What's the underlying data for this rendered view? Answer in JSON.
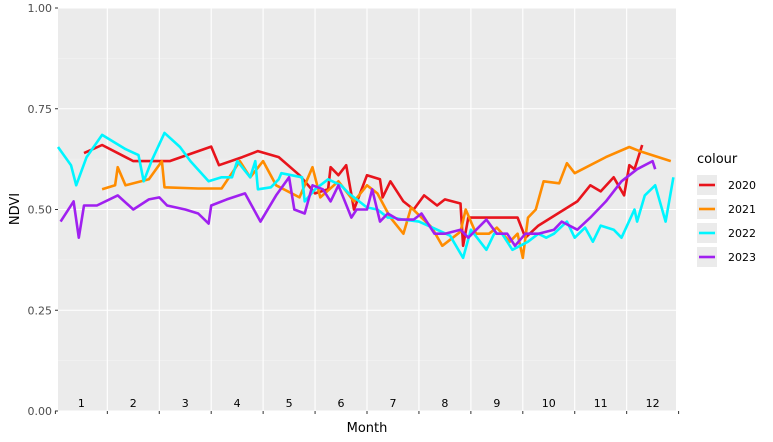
{
  "chart_data": {
    "type": "line",
    "xlabel": "Month",
    "ylabel": "NDVI",
    "ylim": [
      0,
      1
    ],
    "xlim": [
      0.55,
      12.45
    ],
    "yticks": [
      "0.00",
      "0.25",
      "0.50",
      "0.75",
      "1.00"
    ],
    "ytick_values": [
      0,
      0.25,
      0.5,
      0.75,
      1
    ],
    "month_labels": [
      "1",
      "2",
      "3",
      "4",
      "5",
      "6",
      "7",
      "8",
      "9",
      "10",
      "11",
      "12"
    ],
    "grid": true,
    "legend_title": "colour",
    "legend_position": "right",
    "series": [
      {
        "name": "2020",
        "color": "#e8141c",
        "points": [
          [
            1.05,
            0.64
          ],
          [
            1.4,
            0.66
          ],
          [
            2.0,
            0.62
          ],
          [
            2.3,
            0.62
          ],
          [
            2.7,
            0.62
          ],
          [
            3.5,
            0.656
          ],
          [
            3.65,
            0.61
          ],
          [
            4.1,
            0.63
          ],
          [
            4.4,
            0.645
          ],
          [
            4.8,
            0.63
          ],
          [
            5.2,
            0.585
          ],
          [
            5.5,
            0.54
          ],
          [
            5.75,
            0.55
          ],
          [
            5.8,
            0.605
          ],
          [
            5.95,
            0.585
          ],
          [
            6.1,
            0.61
          ],
          [
            6.25,
            0.5
          ],
          [
            6.5,
            0.585
          ],
          [
            6.75,
            0.575
          ],
          [
            6.8,
            0.53
          ],
          [
            6.95,
            0.57
          ],
          [
            7.2,
            0.52
          ],
          [
            7.4,
            0.5
          ],
          [
            7.6,
            0.535
          ],
          [
            7.85,
            0.51
          ],
          [
            8.0,
            0.525
          ],
          [
            8.3,
            0.515
          ],
          [
            8.35,
            0.41
          ],
          [
            8.45,
            0.48
          ],
          [
            8.75,
            0.48
          ],
          [
            9.1,
            0.48
          ],
          [
            9.4,
            0.48
          ],
          [
            9.55,
            0.43
          ],
          [
            9.8,
            0.46
          ],
          [
            10.55,
            0.52
          ],
          [
            10.8,
            0.56
          ],
          [
            11.0,
            0.545
          ],
          [
            11.25,
            0.58
          ],
          [
            11.45,
            0.535
          ],
          [
            11.55,
            0.61
          ],
          [
            11.65,
            0.6
          ],
          [
            11.8,
            0.66
          ]
        ]
      },
      {
        "name": "2021",
        "color": "#ff8c00",
        "points": [
          [
            1.4,
            0.55
          ],
          [
            1.65,
            0.56
          ],
          [
            1.7,
            0.605
          ],
          [
            1.85,
            0.56
          ],
          [
            2.3,
            0.575
          ],
          [
            2.55,
            0.62
          ],
          [
            2.6,
            0.555
          ],
          [
            3.25,
            0.552
          ],
          [
            3.7,
            0.552
          ],
          [
            3.95,
            0.6
          ],
          [
            4.05,
            0.62
          ],
          [
            4.25,
            0.58
          ],
          [
            4.5,
            0.62
          ],
          [
            4.75,
            0.56
          ],
          [
            5.2,
            0.53
          ],
          [
            5.45,
            0.605
          ],
          [
            5.6,
            0.53
          ],
          [
            5.95,
            0.57
          ],
          [
            6.25,
            0.52
          ],
          [
            6.5,
            0.56
          ],
          [
            6.7,
            0.54
          ],
          [
            6.95,
            0.48
          ],
          [
            7.2,
            0.44
          ],
          [
            7.35,
            0.505
          ],
          [
            7.55,
            0.48
          ],
          [
            7.75,
            0.455
          ],
          [
            7.95,
            0.41
          ],
          [
            8.3,
            0.445
          ],
          [
            8.4,
            0.5
          ],
          [
            8.6,
            0.44
          ],
          [
            8.85,
            0.44
          ],
          [
            9.0,
            0.455
          ],
          [
            9.25,
            0.42
          ],
          [
            9.4,
            0.44
          ],
          [
            9.5,
            0.38
          ],
          [
            9.6,
            0.48
          ],
          [
            9.75,
            0.5
          ],
          [
            9.9,
            0.57
          ],
          [
            10.2,
            0.565
          ],
          [
            10.35,
            0.615
          ],
          [
            10.5,
            0.59
          ],
          [
            11.1,
            0.63
          ],
          [
            11.55,
            0.655
          ],
          [
            11.75,
            0.645
          ],
          [
            12.35,
            0.62
          ]
        ]
      },
      {
        "name": "2022",
        "color": "#00f5ff",
        "points": [
          [
            0.55,
            0.655
          ],
          [
            0.8,
            0.61
          ],
          [
            0.9,
            0.56
          ],
          [
            1.1,
            0.63
          ],
          [
            1.4,
            0.685
          ],
          [
            1.85,
            0.65
          ],
          [
            2.1,
            0.635
          ],
          [
            2.2,
            0.57
          ],
          [
            2.35,
            0.62
          ],
          [
            2.6,
            0.69
          ],
          [
            2.9,
            0.655
          ],
          [
            3.1,
            0.62
          ],
          [
            3.45,
            0.57
          ],
          [
            3.7,
            0.58
          ],
          [
            3.9,
            0.58
          ],
          [
            4.0,
            0.62
          ],
          [
            4.25,
            0.58
          ],
          [
            4.35,
            0.62
          ],
          [
            4.4,
            0.55
          ],
          [
            4.65,
            0.555
          ],
          [
            4.8,
            0.575
          ],
          [
            4.85,
            0.59
          ],
          [
            5.25,
            0.58
          ],
          [
            5.3,
            0.52
          ],
          [
            5.5,
            0.55
          ],
          [
            5.75,
            0.575
          ],
          [
            6.0,
            0.56
          ],
          [
            6.15,
            0.54
          ],
          [
            6.35,
            0.52
          ],
          [
            6.5,
            0.505
          ],
          [
            6.7,
            0.5
          ],
          [
            6.9,
            0.48
          ],
          [
            7.0,
            0.48
          ],
          [
            7.2,
            0.475
          ],
          [
            7.5,
            0.47
          ],
          [
            7.85,
            0.45
          ],
          [
            8.1,
            0.435
          ],
          [
            8.35,
            0.38
          ],
          [
            8.5,
            0.45
          ],
          [
            8.8,
            0.4
          ],
          [
            8.95,
            0.44
          ],
          [
            9.1,
            0.44
          ],
          [
            9.3,
            0.4
          ],
          [
            9.6,
            0.42
          ],
          [
            9.8,
            0.44
          ],
          [
            9.95,
            0.43
          ],
          [
            10.1,
            0.44
          ],
          [
            10.35,
            0.47
          ],
          [
            10.5,
            0.43
          ],
          [
            10.7,
            0.455
          ],
          [
            10.85,
            0.42
          ],
          [
            11.0,
            0.46
          ],
          [
            11.25,
            0.45
          ],
          [
            11.4,
            0.43
          ],
          [
            11.65,
            0.5
          ],
          [
            11.7,
            0.47
          ],
          [
            11.85,
            0.535
          ],
          [
            12.05,
            0.56
          ],
          [
            12.25,
            0.47
          ],
          [
            12.4,
            0.58
          ]
        ]
      },
      {
        "name": "2023",
        "color": "#a020f0",
        "points": [
          [
            0.6,
            0.47
          ],
          [
            0.85,
            0.52
          ],
          [
            0.95,
            0.43
          ],
          [
            1.05,
            0.51
          ],
          [
            1.3,
            0.51
          ],
          [
            1.7,
            0.535
          ],
          [
            2.0,
            0.5
          ],
          [
            2.3,
            0.525
          ],
          [
            2.5,
            0.53
          ],
          [
            2.65,
            0.51
          ],
          [
            3.0,
            0.5
          ],
          [
            3.25,
            0.49
          ],
          [
            3.45,
            0.465
          ],
          [
            3.5,
            0.51
          ],
          [
            3.8,
            0.525
          ],
          [
            4.15,
            0.54
          ],
          [
            4.45,
            0.47
          ],
          [
            4.75,
            0.535
          ],
          [
            5.0,
            0.58
          ],
          [
            5.1,
            0.5
          ],
          [
            5.3,
            0.49
          ],
          [
            5.45,
            0.56
          ],
          [
            5.65,
            0.55
          ],
          [
            5.8,
            0.52
          ],
          [
            5.95,
            0.56
          ],
          [
            6.2,
            0.48
          ],
          [
            6.3,
            0.5
          ],
          [
            6.5,
            0.5
          ],
          [
            6.6,
            0.55
          ],
          [
            6.75,
            0.47
          ],
          [
            6.9,
            0.49
          ],
          [
            7.1,
            0.475
          ],
          [
            7.4,
            0.475
          ],
          [
            7.55,
            0.49
          ],
          [
            7.8,
            0.44
          ],
          [
            8.0,
            0.44
          ],
          [
            8.3,
            0.45
          ],
          [
            8.45,
            0.43
          ],
          [
            8.8,
            0.475
          ],
          [
            9.0,
            0.44
          ],
          [
            9.2,
            0.44
          ],
          [
            9.35,
            0.41
          ],
          [
            9.55,
            0.44
          ],
          [
            9.8,
            0.44
          ],
          [
            10.1,
            0.45
          ],
          [
            10.25,
            0.47
          ],
          [
            10.55,
            0.45
          ],
          [
            10.8,
            0.48
          ],
          [
            11.1,
            0.52
          ],
          [
            11.4,
            0.57
          ],
          [
            11.7,
            0.6
          ],
          [
            12.0,
            0.62
          ],
          [
            12.05,
            0.6
          ]
        ]
      }
    ]
  }
}
